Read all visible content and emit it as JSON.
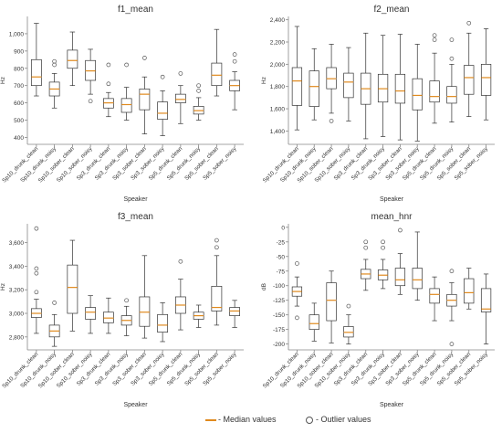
{
  "colors": {
    "median": "#e08a1e",
    "box": "#333333",
    "outlier": "#555555"
  },
  "legend": {
    "median_label": "- Median values",
    "outlier_label": "- Outlier values"
  },
  "chart_data": [
    {
      "type": "boxplot",
      "title": "f1_mean",
      "xlabel": "Speaker",
      "ylabel": "Hz",
      "ylim": [
        360,
        1100
      ],
      "yticks": [
        400,
        500,
        600,
        700,
        800,
        900,
        1000
      ],
      "ytick_labels": [
        "400",
        "500",
        "600",
        "700",
        "800",
        "900",
        "1,000"
      ],
      "categories": [
        "Sp10_drunk_clean",
        "Sp10_drunk_noisy",
        "Sp10_sober_clean",
        "Sp10_sober_noisy",
        "Sp3_drunk_clean",
        "Sp3_drunk_noisy",
        "Sp3_sober_clean",
        "Sp3_sober_noisy",
        "Sp5_drunk_clean",
        "Sp5_drunk_noisy",
        "Sp5_sober_clean",
        "Sp5_sober_noisy"
      ],
      "boxes": [
        {
          "whislo": 640,
          "q1": 700,
          "med": 750,
          "q3": 850,
          "whishi": 1060,
          "fliers": []
        },
        {
          "whislo": 570,
          "q1": 640,
          "med": 680,
          "q3": 720,
          "whishi": 770,
          "fliers": [
            820,
            840
          ]
        },
        {
          "whislo": 700,
          "q1": 800,
          "med": 845,
          "q3": 905,
          "whishi": 1010,
          "fliers": []
        },
        {
          "whislo": 650,
          "q1": 730,
          "med": 785,
          "q3": 845,
          "whishi": 910,
          "fliers": [
            610
          ]
        },
        {
          "whislo": 520,
          "q1": 570,
          "med": 600,
          "q3": 625,
          "whishi": 660,
          "fliers": [
            710,
            820
          ]
        },
        {
          "whislo": 500,
          "q1": 545,
          "med": 590,
          "q3": 625,
          "whishi": 690,
          "fliers": [
            820
          ]
        },
        {
          "whislo": 420,
          "q1": 560,
          "med": 650,
          "q3": 680,
          "whishi": 750,
          "fliers": [
            860
          ]
        },
        {
          "whislo": 410,
          "q1": 505,
          "med": 540,
          "q3": 605,
          "whishi": 670,
          "fliers": [
            750
          ]
        },
        {
          "whislo": 480,
          "q1": 600,
          "med": 620,
          "q3": 650,
          "whishi": 700,
          "fliers": [
            770
          ]
        },
        {
          "whislo": 500,
          "q1": 535,
          "med": 555,
          "q3": 580,
          "whishi": 630,
          "fliers": [
            670,
            700
          ]
        },
        {
          "whislo": 640,
          "q1": 700,
          "med": 760,
          "q3": 830,
          "whishi": 1025,
          "fliers": []
        },
        {
          "whislo": 560,
          "q1": 670,
          "med": 700,
          "q3": 730,
          "whishi": 780,
          "fliers": [
            840,
            880
          ]
        }
      ]
    },
    {
      "type": "boxplot",
      "title": "f2_mean",
      "xlabel": "Speaker",
      "ylabel": "Hz",
      "ylim": [
        1280,
        2430
      ],
      "yticks": [
        1400,
        1600,
        1800,
        2000,
        2200,
        2400
      ],
      "ytick_labels": [
        "1,400",
        "1,600",
        "1,800",
        "2,000",
        "2,200",
        "2,400"
      ],
      "categories": [
        "Sp10_drunk_clean",
        "Sp10_drunk_noisy",
        "Sp10_sober_clean",
        "Sp10_sober_noisy",
        "Sp3_drunk_clean",
        "Sp3_drunk_noisy",
        "Sp3_sober_clean",
        "Sp3_sober_noisy",
        "Sp5_drunk_clean",
        "Sp5_drunk_noisy",
        "Sp5_sober_clean",
        "Sp5_sober_noisy"
      ],
      "boxes": [
        {
          "whislo": 1410,
          "q1": 1630,
          "med": 1850,
          "q3": 1970,
          "whishi": 2340,
          "fliers": []
        },
        {
          "whislo": 1500,
          "q1": 1620,
          "med": 1800,
          "q3": 1940,
          "whishi": 2140,
          "fliers": []
        },
        {
          "whislo": 1560,
          "q1": 1780,
          "med": 1870,
          "q3": 1970,
          "whishi": 2180,
          "fliers": [
            1490
          ]
        },
        {
          "whislo": 1490,
          "q1": 1700,
          "med": 1840,
          "q3": 1920,
          "whishi": 2150,
          "fliers": []
        },
        {
          "whislo": 1330,
          "q1": 1640,
          "med": 1780,
          "q3": 1920,
          "whishi": 2280,
          "fliers": []
        },
        {
          "whislo": 1350,
          "q1": 1660,
          "med": 1780,
          "q3": 1910,
          "whishi": 2260,
          "fliers": []
        },
        {
          "whislo": 1320,
          "q1": 1650,
          "med": 1760,
          "q3": 1910,
          "whishi": 2270,
          "fliers": []
        },
        {
          "whislo": 1310,
          "q1": 1590,
          "med": 1720,
          "q3": 1870,
          "whishi": 2180,
          "fliers": []
        },
        {
          "whislo": 1470,
          "q1": 1660,
          "med": 1710,
          "q3": 1850,
          "whishi": 2100,
          "fliers": [
            2220,
            2260
          ]
        },
        {
          "whislo": 1480,
          "q1": 1650,
          "med": 1710,
          "q3": 1800,
          "whishi": 2000,
          "fliers": [
            2050,
            2220
          ]
        },
        {
          "whislo": 1530,
          "q1": 1730,
          "med": 1880,
          "q3": 1990,
          "whishi": 2280,
          "fliers": [
            2370
          ]
        },
        {
          "whislo": 1500,
          "q1": 1720,
          "med": 1880,
          "q3": 2000,
          "whishi": 2320,
          "fliers": []
        }
      ]
    },
    {
      "type": "boxplot",
      "title": "f3_mean",
      "xlabel": "Speaker",
      "ylabel": "Hz",
      "ylim": [
        2690,
        3760
      ],
      "yticks": [
        2800,
        3000,
        3200,
        3400,
        3600
      ],
      "ytick_labels": [
        "2,800",
        "3,000",
        "3,200",
        "3,400",
        "3,600"
      ],
      "categories": [
        "Sp10_drunk_clean",
        "Sp10_drunk_noisy",
        "Sp10_sober_clean",
        "Sp10_sober_noisy",
        "Sp3_drunk_clean",
        "Sp3_drunk_noisy",
        "Sp3_sober_clean",
        "Sp3_sober_noisy",
        "Sp5_drunk_clean",
        "Sp5_drunk_noisy",
        "Sp5_sober_clean",
        "Sp5_sober_noisy"
      ],
      "boxes": [
        {
          "whislo": 2830,
          "q1": 2965,
          "med": 3000,
          "q3": 3040,
          "whishi": 3120,
          "fliers": [
            3180,
            3340,
            3380,
            3720
          ]
        },
        {
          "whislo": 2720,
          "q1": 2800,
          "med": 2850,
          "q3": 2900,
          "whishi": 2990,
          "fliers": [
            3090
          ]
        },
        {
          "whislo": 2850,
          "q1": 3000,
          "med": 3220,
          "q3": 3410,
          "whishi": 3620,
          "fliers": []
        },
        {
          "whislo": 2830,
          "q1": 2950,
          "med": 3010,
          "q3": 3050,
          "whishi": 3150,
          "fliers": []
        },
        {
          "whislo": 2830,
          "q1": 2920,
          "med": 2960,
          "q3": 3010,
          "whishi": 3130,
          "fliers": []
        },
        {
          "whislo": 2810,
          "q1": 2900,
          "med": 2940,
          "q3": 2980,
          "whishi": 3060,
          "fliers": [
            3110
          ]
        },
        {
          "whislo": 2790,
          "q1": 2890,
          "med": 3010,
          "q3": 3140,
          "whishi": 3490,
          "fliers": []
        },
        {
          "whislo": 2760,
          "q1": 2840,
          "med": 2900,
          "q3": 2990,
          "whishi": 3090,
          "fliers": []
        },
        {
          "whislo": 2860,
          "q1": 3000,
          "med": 3070,
          "q3": 3140,
          "whishi": 3290,
          "fliers": [
            3440
          ]
        },
        {
          "whislo": 2880,
          "q1": 2950,
          "med": 2980,
          "q3": 3010,
          "whishi": 3070,
          "fliers": []
        },
        {
          "whislo": 2900,
          "q1": 3020,
          "med": 3050,
          "q3": 3230,
          "whishi": 3490,
          "fliers": [
            3560,
            3620
          ]
        },
        {
          "whislo": 2880,
          "q1": 2980,
          "med": 3020,
          "q3": 3050,
          "whishi": 3110,
          "fliers": []
        }
      ]
    },
    {
      "type": "boxplot",
      "title": "mean_hnr",
      "xlabel": "Speaker",
      "ylabel": "dB",
      "ylim": [
        -210,
        6
      ],
      "yticks": [
        -200,
        -175,
        -150,
        -125,
        -100,
        -75,
        -50,
        -25,
        0
      ],
      "ytick_labels": [
        "-200",
        "-175",
        "-150",
        "-125",
        "-100",
        "-75",
        "-50",
        "-25",
        "0"
      ],
      "categories": [
        "Sp10_drunk_clean",
        "Sp10_drunk_noisy",
        "Sp10_sober_clean",
        "Sp10_sober_noisy",
        "Sp3_drunk_clean",
        "Sp3_drunk_noisy",
        "Sp3_sober_clean",
        "Sp3_sober_noisy",
        "Sp5_drunk_clean",
        "Sp5_drunk_noisy",
        "Sp5_sober_clean",
        "Sp5_sober_noisy"
      ],
      "boxes": [
        {
          "whislo": -135,
          "q1": -118,
          "med": -110,
          "q3": -102,
          "whishi": -85,
          "fliers": [
            -62,
            -155
          ]
        },
        {
          "whislo": -195,
          "q1": -175,
          "med": -165,
          "q3": -150,
          "whishi": -130,
          "fliers": []
        },
        {
          "whislo": -198,
          "q1": -160,
          "med": -125,
          "q3": -95,
          "whishi": -75,
          "fliers": []
        },
        {
          "whislo": -200,
          "q1": -188,
          "med": -180,
          "q3": -170,
          "whishi": -150,
          "fliers": [
            -135
          ]
        },
        {
          "whislo": -108,
          "q1": -88,
          "med": -80,
          "q3": -72,
          "whishi": -55,
          "fliers": [
            -25,
            -35
          ]
        },
        {
          "whislo": -105,
          "q1": -90,
          "med": -82,
          "q3": -73,
          "whishi": -55,
          "fliers": [
            -25,
            -35
          ]
        },
        {
          "whislo": -115,
          "q1": -100,
          "med": -90,
          "q3": -70,
          "whishi": -45,
          "fliers": [
            -5
          ]
        },
        {
          "whislo": -125,
          "q1": -105,
          "med": -90,
          "q3": -70,
          "whishi": -8,
          "fliers": []
        },
        {
          "whislo": -160,
          "q1": -130,
          "med": -115,
          "q3": -105,
          "whishi": -85,
          "fliers": []
        },
        {
          "whislo": -160,
          "q1": -135,
          "med": -125,
          "q3": -115,
          "whishi": -95,
          "fliers": [
            -75,
            -200
          ]
        },
        {
          "whislo": -140,
          "q1": -130,
          "med": -112,
          "q3": -88,
          "whishi": -70,
          "fliers": []
        },
        {
          "whislo": -200,
          "q1": -145,
          "med": -140,
          "q3": -105,
          "whishi": -80,
          "fliers": []
        }
      ]
    }
  ]
}
